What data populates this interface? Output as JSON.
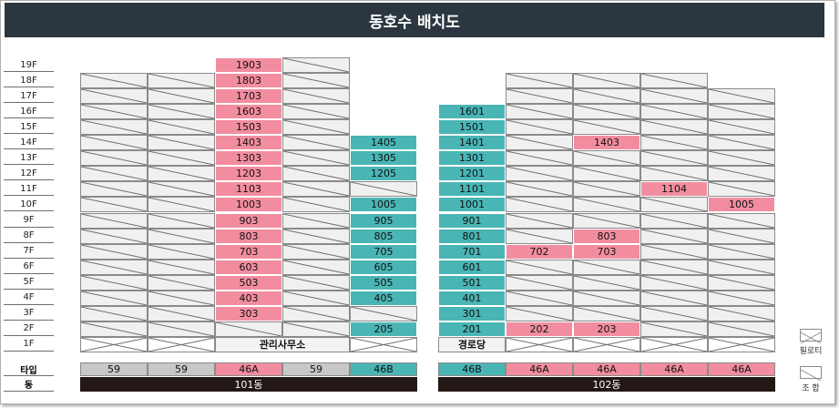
{
  "title": "동호수 배치도",
  "floors": [
    "19F",
    "18F",
    "17F",
    "16F",
    "15F",
    "14F",
    "13F",
    "12F",
    "11F",
    "10F",
    "9F",
    "8F",
    "7F",
    "6F",
    "5F",
    "4F",
    "3F",
    "2F",
    "1F"
  ],
  "row_labels": {
    "type": "타입",
    "dong": "동"
  },
  "building_101": {
    "name": "101동",
    "columns": [
      {
        "type": "59",
        "type_color": "gray",
        "top_floor": 18,
        "units": {}
      },
      {
        "type": "59",
        "type_color": "gray",
        "top_floor": 18,
        "units": {}
      },
      {
        "type": "46A",
        "type_color": "pink",
        "top_floor": 19,
        "units": {
          "19": "1903",
          "18": "1803",
          "17": "1703",
          "16": "1603",
          "15": "1503",
          "14": "1403",
          "13": "1303",
          "12": "1203",
          "11": "1103",
          "10": "1003",
          "9": "903",
          "8": "803",
          "7": "703",
          "6": "603",
          "5": "503",
          "4": "403",
          "3": "303"
        },
        "color": "pink"
      },
      {
        "type": "59",
        "type_color": "gray",
        "top_floor": 19,
        "units": {}
      },
      {
        "type": "46B",
        "type_color": "teal",
        "top_floor": 14,
        "units": {
          "14": "1405",
          "13": "1305",
          "12": "1205",
          "10": "1005",
          "9": "905",
          "8": "805",
          "7": "705",
          "6": "605",
          "5": "505",
          "4": "405",
          "2": "205"
        },
        "color": "teal"
      }
    ],
    "ground_label": "관리사무소"
  },
  "building_102": {
    "name": "102동",
    "columns": [
      {
        "type": "46B",
        "type_color": "teal",
        "top_floor": 16,
        "units": {
          "16": "1601",
          "15": "1501",
          "14": "1401",
          "13": "1301",
          "12": "1201",
          "11": "1101",
          "10": "1001",
          "9": "901",
          "8": "801",
          "7": "701",
          "6": "601",
          "5": "501",
          "4": "401",
          "3": "301",
          "2": "201"
        },
        "color": "teal"
      },
      {
        "type": "46A",
        "type_color": "pink",
        "top_floor": 18,
        "units": {
          "7": "702",
          "2": "202"
        },
        "color": "pink"
      },
      {
        "type": "46A",
        "type_color": "pink",
        "top_floor": 18,
        "units": {
          "14": "1403",
          "8": "803",
          "7": "703",
          "2": "203"
        },
        "color": "pink"
      },
      {
        "type": "46A",
        "type_color": "pink",
        "top_floor": 18,
        "units": {
          "11": "1104"
        },
        "color": "pink"
      },
      {
        "type": "46A",
        "type_color": "pink",
        "top_floor": 17,
        "units": {
          "10": "1005"
        },
        "color": "pink"
      }
    ],
    "ground_label": "경로당"
  },
  "legend": {
    "piloti": "필로티",
    "union": "조 합"
  }
}
